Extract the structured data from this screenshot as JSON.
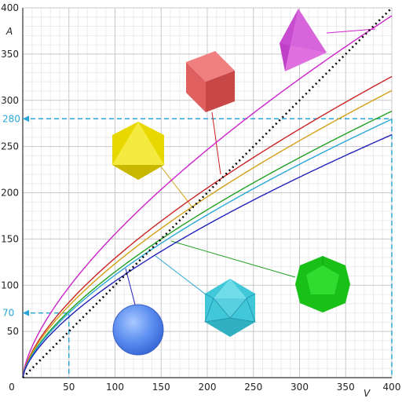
{
  "chart_data": {
    "type": "line",
    "xlabel": "V",
    "ylabel": "A",
    "xlim": [
      0,
      400
    ],
    "ylim": [
      0,
      400
    ],
    "x_ticks": [
      0,
      50,
      100,
      150,
      200,
      250,
      300,
      350,
      400
    ],
    "y_ticks": [
      50,
      100,
      150,
      200,
      250,
      300,
      350,
      400
    ],
    "grid": true,
    "series": [
      {
        "shape": "tetrahedron",
        "color": "#cc22cc",
        "k": 7.21
      },
      {
        "shape": "cube",
        "color": "#cc2222",
        "k": 6.0
      },
      {
        "shape": "octahedron",
        "color": "#d4a017",
        "k": 5.72
      },
      {
        "shape": "dodecahedron",
        "color": "#22a022",
        "k": 5.31
      },
      {
        "shape": "icosahedron",
        "color": "#2aa6d6",
        "k": 5.15
      },
      {
        "shape": "sphere",
        "color": "#2222bb",
        "k": 4.84
      }
    ],
    "reference_line": {
      "style": "dotted",
      "color": "#000000",
      "points": [
        [
          0,
          0
        ],
        [
          400,
          400
        ]
      ]
    },
    "markers": [
      {
        "x": 50,
        "y": 70,
        "label_x": "50",
        "label_y": "70",
        "color": "#2aa6d6"
      },
      {
        "x": 400,
        "y": 280,
        "label_x": "400",
        "label_y": "280",
        "color": "#2aa6d6"
      }
    ]
  }
}
